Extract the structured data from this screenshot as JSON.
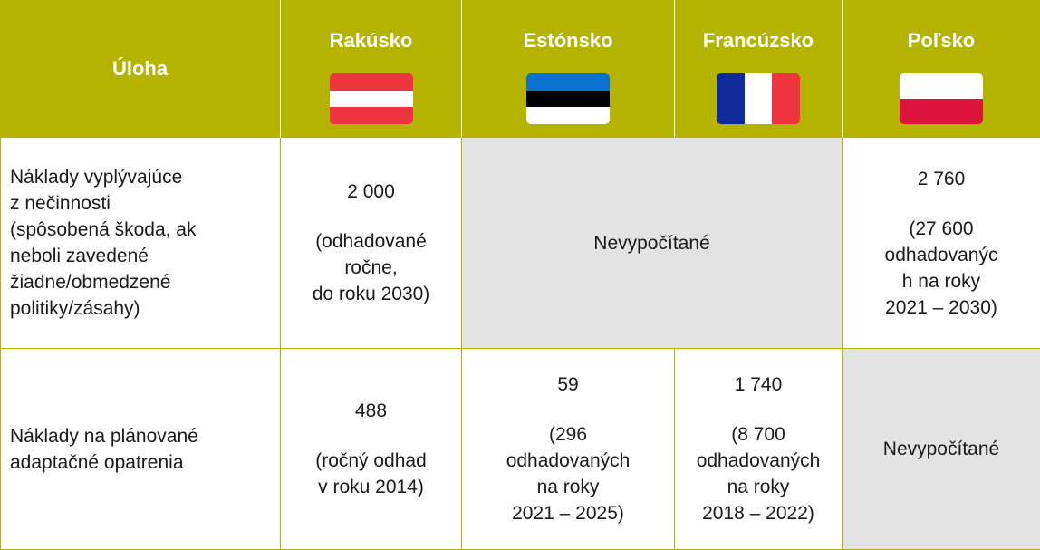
{
  "header": {
    "task": "Úloha",
    "countries": [
      "Rakúsko",
      "Estónsko",
      "Francúzsko",
      "Poľsko"
    ]
  },
  "rows": [
    {
      "label": [
        "Náklady vyplývajúce",
        "z nečinnosti",
        "(spôsobená škoda, ak",
        "neboli zavedené",
        "žiadne/obmedzené",
        "politiky/zásahy)"
      ],
      "cells": [
        {
          "value": "2 000",
          "note": [
            "(odhadované",
            "ročne,",
            "do roku 2030)"
          ]
        },
        {
          "text": "Nevypočítané"
        },
        {
          "value": "2 760",
          "note": [
            "(27 600",
            "odhadovanýc",
            "h na roky",
            "2021 – 2030)"
          ]
        }
      ]
    },
    {
      "label": [
        "Náklady na plánované",
        "adaptačné opatrenia"
      ],
      "cells": [
        {
          "value": "488",
          "note": [
            "(ročný odhad",
            "v roku 2014)"
          ]
        },
        {
          "value": "59",
          "note": [
            "(296",
            "odhadovaných",
            "na roky",
            "2021 – 2025)"
          ]
        },
        {
          "value": "1 740",
          "note": [
            "(8 700",
            "odhadovaných",
            "na roky",
            "2018 – 2022)"
          ]
        },
        {
          "text": "Nevypočítané"
        }
      ]
    }
  ]
}
